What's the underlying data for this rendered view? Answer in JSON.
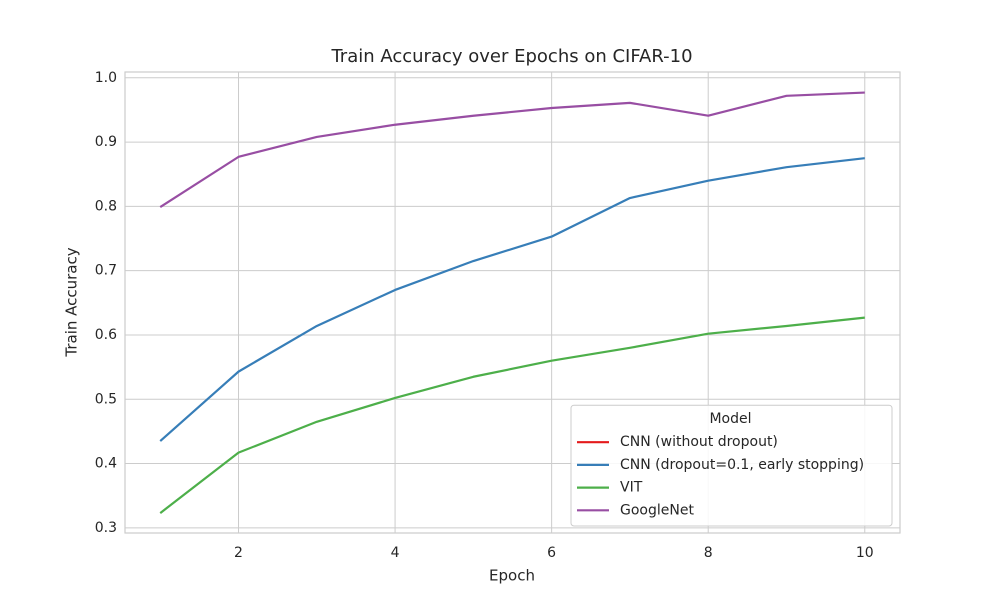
{
  "chart_data": {
    "type": "line",
    "title": "Train Accuracy over Epochs on CIFAR-10",
    "x_label": "Epoch",
    "y_label": "Train Accuracy",
    "x": [
      1,
      2,
      3,
      4,
      5,
      6,
      7,
      8,
      9,
      10
    ],
    "series": [
      {
        "name": "CNN (without dropout)",
        "color": "#e41a1c",
        "values": [
          null,
          null,
          null,
          null,
          null,
          null,
          null,
          null,
          null,
          null
        ]
      },
      {
        "name": "CNN (dropout=0.1, early stopping)",
        "color": "#377eb8",
        "values": [
          0.435,
          0.543,
          0.614,
          0.67,
          0.715,
          0.753,
          0.813,
          0.84,
          0.861,
          0.875
        ]
      },
      {
        "name": "VIT",
        "color": "#4daf4a",
        "values": [
          0.323,
          0.417,
          0.465,
          0.502,
          0.535,
          0.56,
          0.58,
          0.602,
          0.614,
          0.627
        ]
      },
      {
        "name": "GoogleNet",
        "color": "#984ea3",
        "values": [
          0.799,
          0.877,
          0.908,
          0.927,
          0.941,
          0.953,
          0.961,
          0.941,
          0.972,
          0.977
        ]
      }
    ],
    "xlim": [
      0.55,
      10.45
    ],
    "ylim": [
      0.292,
      1.009
    ],
    "xticks": [
      2,
      4,
      6,
      8,
      10
    ],
    "yticks": [
      0.3,
      0.4,
      0.5,
      0.6,
      0.7,
      0.8,
      0.9,
      {
        "value": 1,
        "label": "1.0"
      }
    ],
    "grid": true,
    "legend_title": "Model",
    "legend_position": "lower right"
  }
}
